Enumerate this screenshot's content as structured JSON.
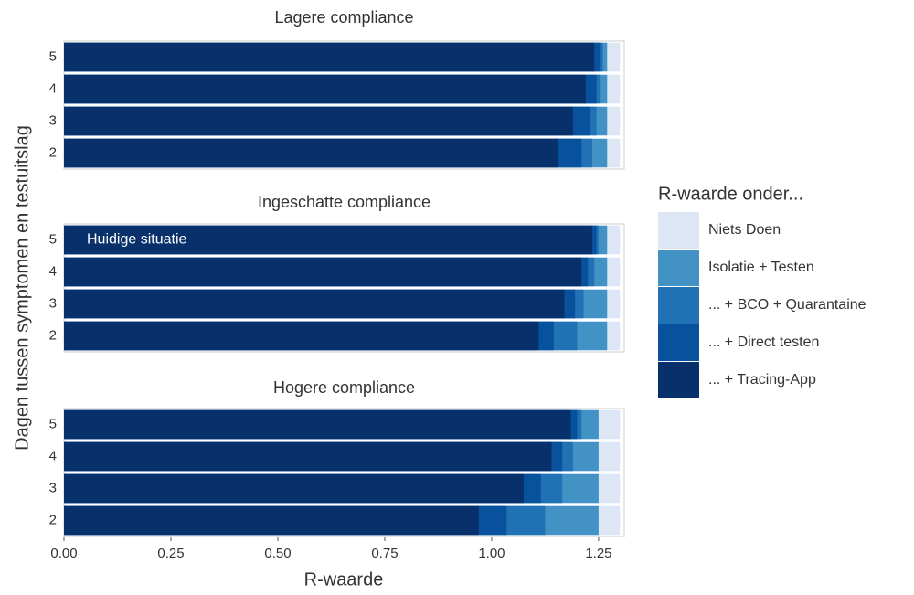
{
  "chart_data": {
    "type": "bar",
    "xlabel": "R-waarde",
    "ylabel": "Dagen tussen symptomen en testuitslag",
    "legend_title": "R-waarde onder...",
    "annotation": "Huidige situatie",
    "categories": [
      "5",
      "4",
      "3",
      "2"
    ],
    "facets": [
      "Lagere compliance",
      "Ingeschatte compliance",
      "Hogere compliance"
    ],
    "xlim": [
      0,
      1.31
    ],
    "xticks": [
      {
        "value": 0,
        "label": "0.00"
      },
      {
        "value": 0.25,
        "label": "0.25"
      },
      {
        "value": 0.5,
        "label": "0.50"
      },
      {
        "value": 0.75,
        "label": "0.75"
      },
      {
        "value": 1,
        "label": "1.00"
      },
      {
        "value": 1.25,
        "label": "1.25"
      }
    ],
    "series": [
      {
        "name": "Niets Doen",
        "color": "#dce6f5",
        "values": [
          [
            1.3,
            1.3,
            1.3,
            1.3
          ],
          [
            1.3,
            1.3,
            1.3,
            1.3
          ],
          [
            1.3,
            1.3,
            1.3,
            1.3
          ]
        ]
      },
      {
        "name": "Isolatie + Testen",
        "color": "#4292c6",
        "values": [
          [
            1.27,
            1.27,
            1.27,
            1.27
          ],
          [
            1.27,
            1.27,
            1.27,
            1.27
          ],
          [
            1.25,
            1.25,
            1.25,
            1.25
          ]
        ]
      },
      {
        "name": "... + BCO + Quarantaine",
        "color": "#2171b5",
        "values": [
          [
            1.26,
            1.255,
            1.245,
            1.235
          ],
          [
            1.25,
            1.24,
            1.215,
            1.2
          ],
          [
            1.21,
            1.19,
            1.165,
            1.125
          ]
        ]
      },
      {
        "name": "... + Direct testen",
        "color": "#08519c",
        "values": [
          [
            1.255,
            1.245,
            1.23,
            1.21
          ],
          [
            1.245,
            1.225,
            1.195,
            1.145
          ],
          [
            1.2,
            1.165,
            1.115,
            1.035
          ]
        ]
      },
      {
        "name": "... + Tracing-App",
        "color": "#08306b",
        "values": [
          [
            1.24,
            1.22,
            1.19,
            1.155
          ],
          [
            1.235,
            1.21,
            1.17,
            1.11
          ],
          [
            1.185,
            1.14,
            1.075,
            0.97
          ]
        ]
      }
    ]
  }
}
